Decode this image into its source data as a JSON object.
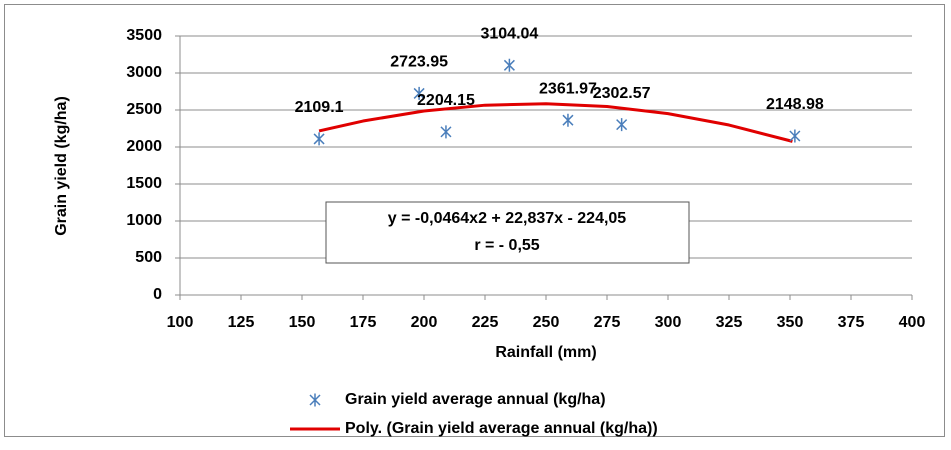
{
  "chart_data": {
    "type": "scatter",
    "x_label": "Rainfall (mm)",
    "y_label": "Grain yield (kg/ha)",
    "xlim": [
      100,
      400
    ],
    "xticks": [
      100,
      125,
      150,
      175,
      200,
      225,
      250,
      275,
      300,
      325,
      350,
      375,
      400
    ],
    "ylim": [
      0,
      3500
    ],
    "yticks": [
      0,
      500,
      1000,
      1500,
      2000,
      2500,
      3000,
      3500
    ],
    "grid": true,
    "legend": "bottom",
    "series": [
      {
        "name": "Grain yield average annual (kg/ha)",
        "color": "#4a7ebb",
        "marker": "asterisk",
        "data_labels": true,
        "x": [
          157,
          198,
          209,
          235,
          259,
          281,
          352
        ],
        "values": [
          2109.1,
          2723.95,
          2204.15,
          3104.04,
          2361.97,
          2302.57,
          2148.98
        ]
      },
      {
        "name": "Poly. (Grain yield average annual (kg/ha))",
        "color": "#e00000",
        "type": "line",
        "x": [
          157,
          175,
          200,
          225,
          250,
          275,
          300,
          325,
          351
        ],
        "values": [
          2217,
          2351,
          2487,
          2565,
          2585,
          2547,
          2451,
          2297,
          2076
        ]
      }
    ],
    "annotation": [
      "y = -0,0464x2 + 22,837x - 224,05",
      "r = - 0,55"
    ]
  }
}
